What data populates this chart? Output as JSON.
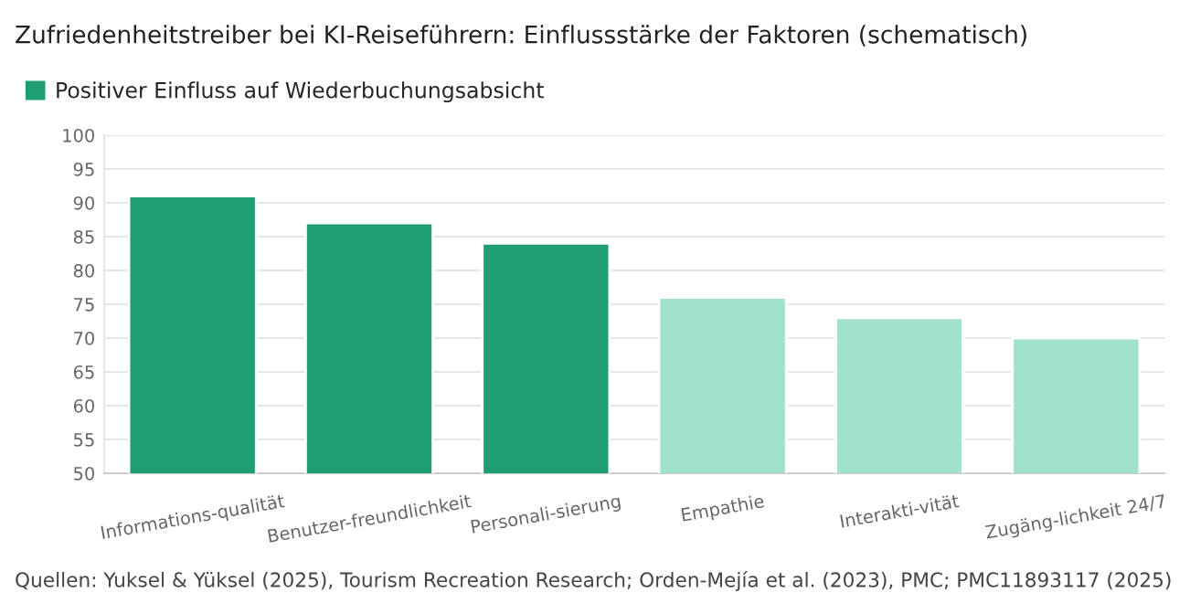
{
  "chart_data": {
    "type": "bar",
    "title": "Zufriedenheitstreiber bei KI-Reiseführern: Einflussstärke der Faktoren (schematisch)",
    "categories": [
      "Informations-qualität",
      "Benutzer-freundlichkeit",
      "Personali-sierung",
      "Empathie",
      "Interakti-vität",
      "Zugäng-lichkeit 24/7"
    ],
    "series": [
      {
        "name": "Positiver Einfluss auf Wiederbuchungsabsicht",
        "color": "#1f9e74",
        "colors": [
          "#1f9e74",
          "#1f9e74",
          "#1f9e74",
          "#a2e1cb",
          "#a2e1cb",
          "#a2e1cb"
        ],
        "values": [
          91,
          87,
          84,
          76,
          73,
          70
        ]
      }
    ],
    "ylim": [
      50,
      100
    ],
    "yticks": [
      50,
      55,
      60,
      65,
      70,
      75,
      80,
      85,
      90,
      95,
      100
    ],
    "grid": "y",
    "legend": "top left",
    "annotations": [
      "Quellen: Yuksel & Yüksel (2025), Tourism Recreation Research; Orden-Mejía et al. (2023), PMC; PMC11893117 (2025)"
    ]
  }
}
